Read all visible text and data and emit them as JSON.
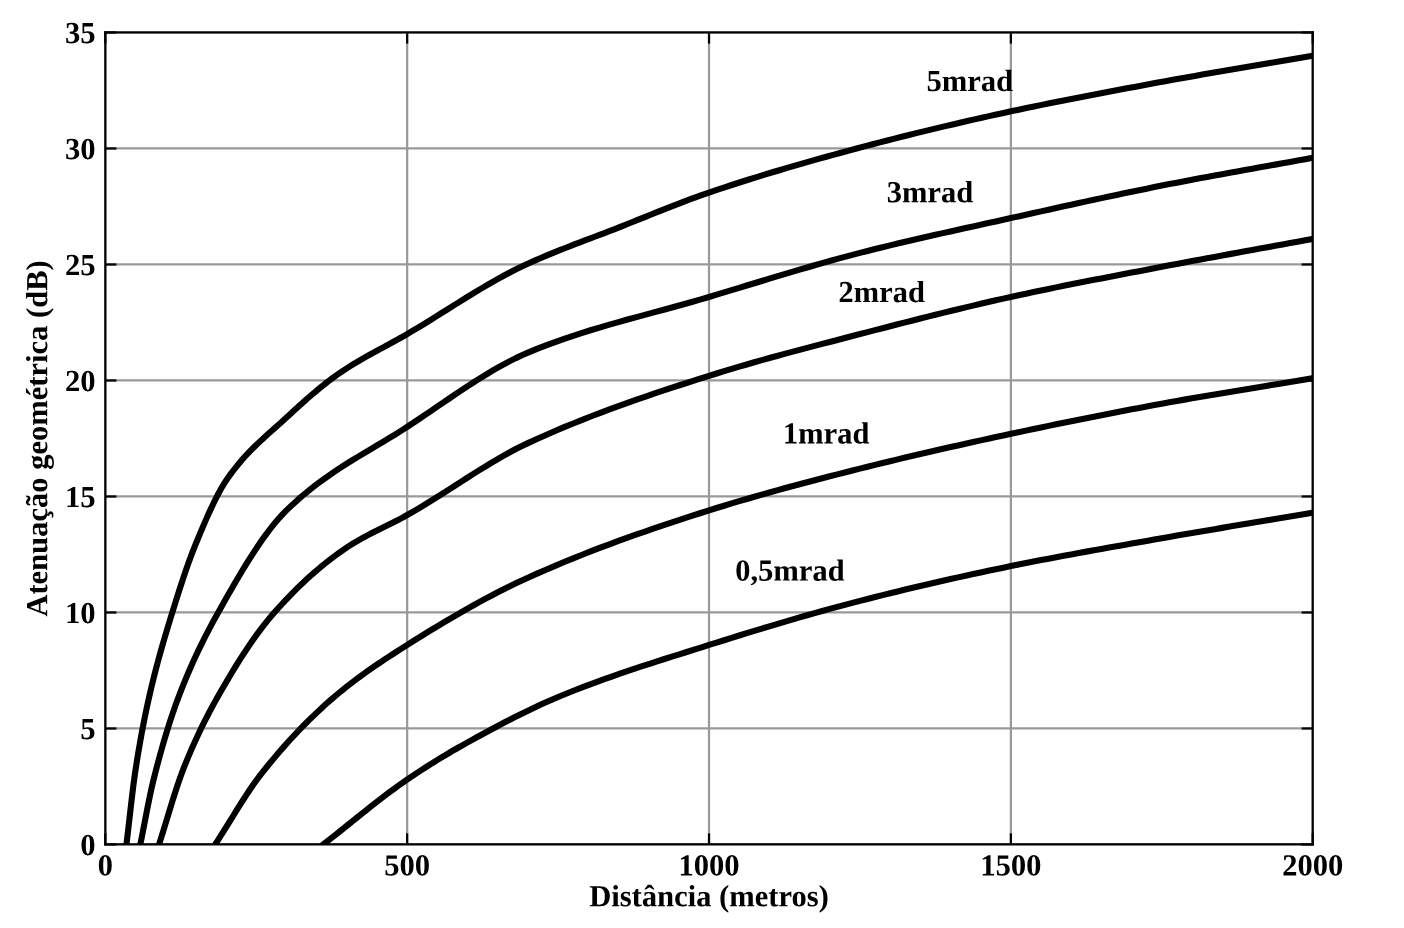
{
  "chart_data": {
    "type": "line",
    "xlabel": "Distância (metros)",
    "ylabel": "Atenuação geométrica (dB)",
    "xlim": [
      0,
      2000
    ],
    "xticks": [
      0,
      500,
      1000,
      1500,
      2000
    ],
    "ylim": [
      0,
      35
    ],
    "yticks": [
      0,
      5,
      10,
      15,
      20,
      25,
      30,
      35
    ],
    "grid": true,
    "marker": "none",
    "line_style": "solid",
    "series": [
      {
        "name": "5mrad",
        "color": "#000000",
        "x": [
          35,
          50,
          73,
          111,
          149,
          203,
          300,
          387,
          500,
          689,
          851,
          1000,
          1259,
          1500,
          1756,
          2000
        ],
        "values": [
          0,
          3.2,
          6.4,
          10,
          12.9,
          15.8,
          18.4,
          20.3,
          22.0,
          24.9,
          26.6,
          28.1,
          30.1,
          31.6,
          32.9,
          34.0
        ]
      },
      {
        "name": "3mrad",
        "color": "#000000",
        "x": [
          58,
          80,
          122,
          187,
          300,
          500,
          700,
          1000,
          1250,
          1500,
          1750,
          2000
        ],
        "values": [
          0,
          2.8,
          6.4,
          10,
          14.4,
          18.0,
          21.2,
          23.6,
          25.5,
          27.0,
          28.4,
          29.6
        ]
      },
      {
        "name": "2mrad",
        "color": "#000000",
        "x": [
          89,
          130,
          187,
          280,
          400,
          500,
          700,
          1000,
          1250,
          1500,
          1750,
          2000
        ],
        "values": [
          0,
          3.3,
          6.4,
          10,
          12.8,
          14.2,
          17.3,
          20.2,
          22.0,
          23.6,
          24.9,
          26.1
        ]
      },
      {
        "name": "1mrad",
        "color": "#000000",
        "x": [
          182,
          260,
          381,
          500,
          700,
          1000,
          1250,
          1500,
          1750,
          2000
        ],
        "values": [
          0,
          3.1,
          6.4,
          8.6,
          11.5,
          14.4,
          16.2,
          17.7,
          19.0,
          20.1
        ]
      },
      {
        "name": "0,5mrad",
        "color": "#000000",
        "x": [
          361,
          500,
          600,
          754,
          1000,
          1250,
          1500,
          1750,
          2000
        ],
        "values": [
          0,
          2.8,
          4.4,
          6.4,
          8.6,
          10.5,
          12.0,
          13.2,
          14.3
        ]
      }
    ]
  }
}
